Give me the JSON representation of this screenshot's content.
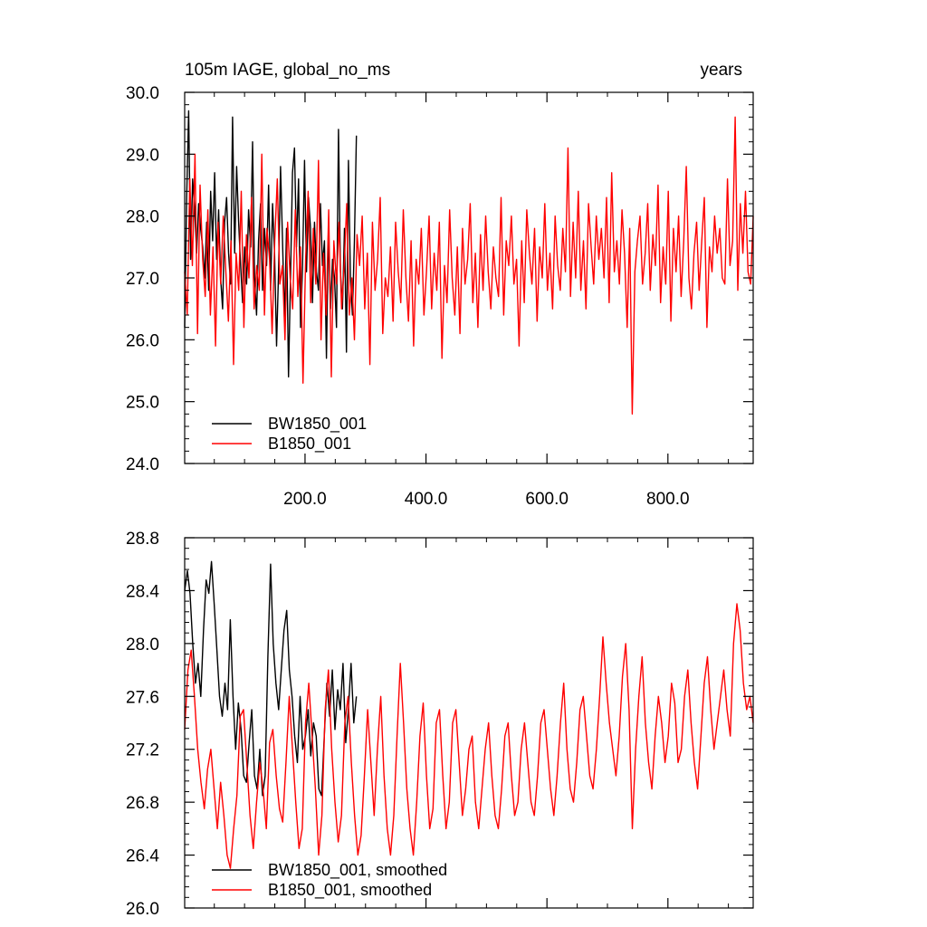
{
  "chart_data": [
    {
      "type": "line",
      "title_left": "105m IAGE, global_no_ms",
      "title_right": "years",
      "xlim": [
        1,
        941
      ],
      "ylim": [
        24.0,
        30.0
      ],
      "yticks": [
        24.0,
        25.0,
        26.0,
        27.0,
        28.0,
        29.0,
        30.0
      ],
      "ytick_labels": [
        "24.0",
        "25.0",
        "26.0",
        "27.0",
        "28.0",
        "29.0",
        "30.0"
      ],
      "xticks": [
        200,
        400,
        600,
        800
      ],
      "xtick_labels": [
        "200.0",
        "400.0",
        "600.0",
        "800.0"
      ],
      "legend_position": "bottom-left",
      "series": [
        {
          "name": "BW1850_001",
          "color": "#000000",
          "x_range": [
            1,
            285
          ],
          "values": [
            26.2,
            28.3,
            29.7,
            27.3,
            28.6,
            28.1,
            27.4,
            28.2,
            27.8,
            27.5,
            27.0,
            27.9,
            26.8,
            28.4,
            27.6,
            28.7,
            27.3,
            28.1,
            27.0,
            26.5,
            27.9,
            28.3,
            27.4,
            26.9,
            29.6,
            27.4,
            28.8,
            27.9,
            27.2,
            26.6,
            27.5,
            26.9,
            28.1,
            27.5,
            29.2,
            27.0,
            26.4,
            27.6,
            28.2,
            26.8,
            27.8,
            27.2,
            28.5,
            26.8,
            28.2,
            27.4,
            25.9,
            27.1,
            28.8,
            27.6,
            26.3,
            27.8,
            25.4,
            27.0,
            28.7,
            29.1,
            27.5,
            28.6,
            26.2,
            27.2,
            28.9,
            27.1,
            28.3,
            27.8,
            26.6,
            27.9,
            27.1,
            26.8,
            28.2,
            27.2,
            27.6,
            25.7,
            27.8,
            26.5,
            27.3,
            27.0,
            26.2,
            29.4,
            27.1,
            26.5,
            27.8,
            25.8,
            28.9,
            27.0,
            26.4,
            27.6,
            29.3
          ]
        },
        {
          "name": "B1850_001",
          "color": "#ff0000",
          "x_range": [
            1,
            941
          ],
          "values": [
            27.1,
            26.4,
            28.6,
            27.2,
            29.0,
            26.1,
            28.5,
            27.3,
            26.7,
            28.1,
            26.4,
            27.5,
            25.9,
            27.9,
            26.9,
            28.0,
            27.1,
            26.3,
            27.6,
            25.6,
            27.4,
            26.8,
            28.4,
            26.2,
            27.7,
            27.0,
            28.3,
            26.5,
            27.2,
            26.8,
            29.0,
            26.4,
            27.8,
            27.3,
            26.1,
            27.6,
            28.6,
            26.9,
            27.2,
            26.0,
            27.9,
            27.0,
            26.5,
            28.1,
            26.7,
            27.5,
            25.3,
            27.3,
            28.4,
            26.6,
            27.8,
            26.9,
            28.9,
            26.0,
            27.4,
            26.4,
            28.1,
            25.4,
            27.6,
            26.9,
            27.9,
            26.5,
            27.2,
            28.2,
            26.4,
            27.0,
            26.0,
            27.7,
            27.2,
            28.0,
            26.5,
            27.4,
            25.6,
            27.9,
            26.8,
            27.3,
            28.3,
            26.1,
            27.0,
            26.7,
            27.5,
            26.3,
            27.9,
            27.1,
            26.6,
            28.1,
            27.0,
            26.3,
            27.6,
            25.9,
            27.3,
            26.9,
            27.8,
            26.4,
            27.1,
            28.0,
            26.5,
            27.4,
            26.8,
            27.9,
            25.7,
            27.2,
            26.6,
            28.1,
            27.0,
            26.4,
            27.5,
            26.1,
            27.8,
            26.9,
            27.3,
            28.2,
            26.6,
            27.4,
            26.2,
            27.7,
            26.8,
            28.0,
            27.1,
            26.5,
            27.5,
            27.0,
            26.7,
            28.3,
            26.4,
            27.6,
            27.2,
            28.0,
            26.9,
            27.3,
            25.9,
            27.6,
            26.6,
            28.1,
            27.4,
            26.9,
            27.8,
            26.3,
            27.5,
            27.0,
            28.2,
            26.8,
            27.4,
            26.5,
            28.0,
            27.2,
            26.8,
            27.8,
            27.1,
            29.1,
            26.7,
            27.9,
            27.0,
            28.4,
            26.8,
            27.6,
            26.5,
            28.2,
            27.5,
            26.9,
            28.0,
            27.3,
            27.8,
            27.0,
            28.3,
            26.6,
            28.7,
            27.1,
            27.6,
            26.9,
            28.1,
            27.4,
            26.2,
            27.8,
            24.8,
            27.1,
            27.6,
            28.0,
            26.9,
            27.4,
            28.2,
            26.8,
            27.7,
            27.2,
            28.5,
            26.6,
            27.5,
            26.9,
            28.4,
            26.3,
            27.8,
            27.1,
            28.0,
            26.7,
            27.6,
            28.8,
            27.0,
            26.5,
            27.4,
            27.9,
            26.8,
            27.6,
            28.3,
            26.2,
            27.5,
            27.1,
            28.0,
            27.4,
            27.8,
            27.0,
            26.9,
            28.6,
            27.2,
            27.6,
            29.6,
            26.8,
            28.2,
            27.4,
            28.4,
            27.1,
            26.9,
            28.0
          ]
        }
      ]
    },
    {
      "type": "line",
      "xlim": [
        1,
        941
      ],
      "ylim": [
        26.0,
        28.8
      ],
      "yticks": [
        26.0,
        26.4,
        26.8,
        27.2,
        27.6,
        28.0,
        28.4,
        28.8
      ],
      "ytick_labels": [
        "26.0",
        "26.4",
        "26.8",
        "27.2",
        "27.6",
        "28.0",
        "28.4",
        "28.8"
      ],
      "xticks": [
        200,
        400,
        600,
        800
      ],
      "legend_position": "bottom-left",
      "series": [
        {
          "name": "BW1850_001, smoothed",
          "color": "#000000",
          "x_range": [
            1,
            285
          ],
          "values": [
            28.4,
            28.55,
            28.38,
            28.0,
            27.7,
            27.85,
            27.6,
            28.1,
            28.48,
            28.38,
            28.62,
            28.3,
            27.95,
            27.6,
            27.45,
            27.7,
            27.5,
            28.18,
            27.6,
            27.2,
            27.55,
            27.35,
            27.0,
            26.95,
            27.25,
            27.5,
            27.0,
            26.9,
            27.2,
            26.85,
            27.0,
            27.9,
            28.6,
            28.0,
            27.7,
            27.5,
            27.8,
            28.1,
            28.25,
            27.8,
            27.6,
            27.3,
            27.1,
            27.6,
            27.2,
            27.3,
            27.5,
            27.15,
            27.4,
            27.3,
            26.9,
            26.85,
            27.3,
            27.7,
            27.45,
            27.8,
            27.35,
            27.65,
            27.5,
            27.85,
            27.25,
            27.5,
            27.85,
            27.4,
            27.6
          ]
        },
        {
          "name": "B1850_001, smoothed",
          "color": "#ff0000",
          "x_range": [
            1,
            941
          ],
          "values": [
            27.35,
            27.8,
            27.95,
            27.6,
            27.2,
            26.95,
            26.75,
            27.05,
            27.2,
            26.9,
            26.6,
            26.95,
            26.7,
            26.4,
            26.3,
            26.6,
            26.85,
            27.45,
            27.5,
            27.1,
            26.7,
            26.45,
            26.8,
            27.1,
            26.9,
            26.6,
            27.25,
            27.35,
            27.0,
            26.75,
            26.65,
            27.1,
            27.6,
            27.2,
            26.8,
            26.45,
            26.6,
            27.4,
            27.7,
            27.3,
            26.9,
            26.4,
            26.7,
            27.5,
            27.8,
            27.2,
            26.8,
            26.5,
            26.7,
            27.4,
            27.6,
            27.1,
            26.7,
            26.4,
            26.55,
            27.0,
            27.5,
            27.1,
            26.7,
            27.2,
            27.6,
            27.0,
            26.6,
            26.4,
            26.7,
            27.3,
            27.85,
            27.4,
            26.9,
            26.6,
            26.4,
            26.8,
            27.3,
            27.55,
            27.0,
            26.6,
            26.75,
            27.4,
            27.5,
            27.0,
            26.6,
            26.8,
            27.4,
            27.5,
            27.1,
            26.7,
            26.9,
            27.2,
            27.3,
            26.8,
            26.6,
            26.9,
            27.2,
            27.4,
            27.0,
            26.7,
            26.6,
            26.9,
            27.3,
            27.4,
            27.0,
            26.7,
            26.8,
            27.2,
            27.4,
            27.1,
            26.8,
            26.7,
            27.0,
            27.4,
            27.5,
            27.2,
            26.9,
            26.7,
            27.0,
            27.4,
            27.7,
            27.2,
            26.9,
            26.8,
            27.1,
            27.5,
            27.6,
            27.3,
            27.0,
            26.9,
            27.2,
            27.6,
            28.05,
            27.7,
            27.4,
            27.2,
            27.0,
            27.3,
            27.75,
            28.0,
            27.5,
            26.6,
            27.2,
            27.6,
            27.9,
            27.4,
            27.1,
            26.9,
            27.3,
            27.6,
            27.4,
            27.1,
            27.3,
            27.7,
            27.55,
            27.1,
            27.2,
            27.6,
            27.8,
            27.4,
            27.1,
            26.9,
            27.3,
            27.7,
            27.9,
            27.5,
            27.2,
            27.4,
            27.6,
            27.8,
            27.5,
            27.3,
            28.0,
            28.3,
            28.1,
            27.7,
            27.5,
            27.6,
            27.4
          ]
        }
      ]
    }
  ]
}
